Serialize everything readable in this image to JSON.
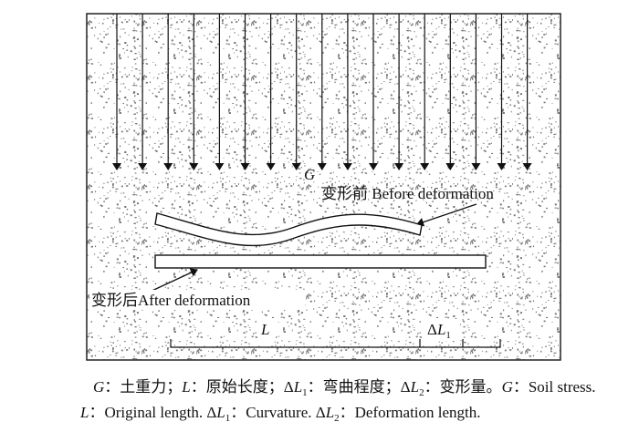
{
  "figure": {
    "force_label": "G",
    "before_label": "变形前 Before deformation",
    "after_label": "变形后After deformation",
    "length_label": "L",
    "delta_label": [
      "Δ",
      "L",
      "1"
    ],
    "caption": {
      "line1": [
        "G",
        "：土重力；",
        "L",
        "：原始长度；Δ",
        "L",
        "1",
        "：弯曲程度；Δ",
        "L",
        "2",
        "：变形量。",
        "G",
        "：Soil stress."
      ],
      "line2": [
        "L",
        "：Original length. Δ",
        "L",
        "1",
        "：Curvature. Δ",
        "L",
        "2",
        "：Deformation length."
      ]
    }
  }
}
